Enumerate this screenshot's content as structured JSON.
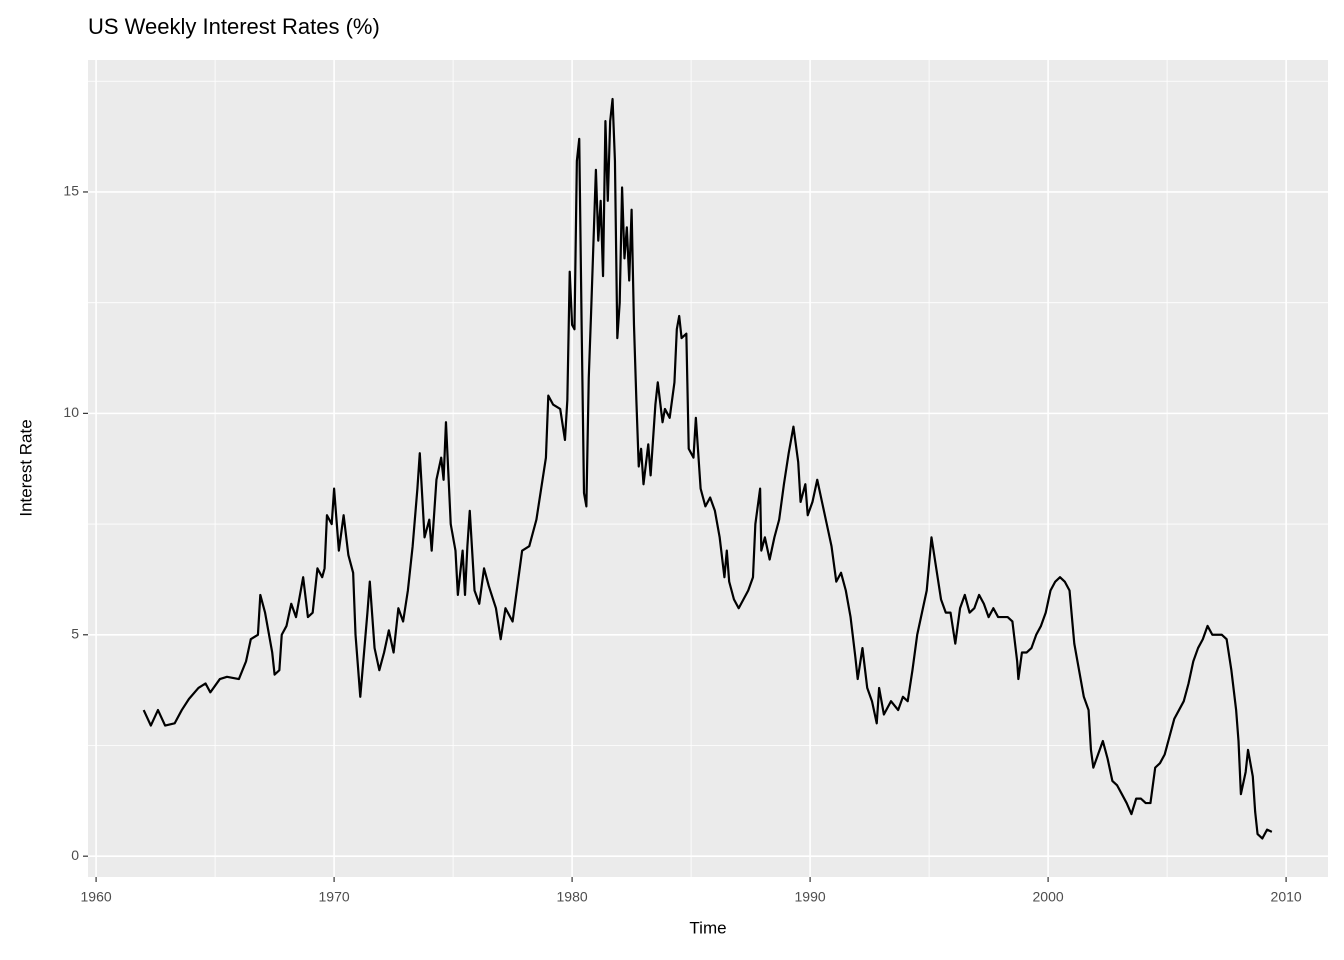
{
  "chart_data": {
    "type": "line",
    "title": "US Weekly Interest Rates (%)",
    "x_label": "Time",
    "y_label": "Interest Rate",
    "color": "#000000",
    "grid": true,
    "xlim": [
      1959.66,
      2011.76
    ],
    "ylim": [
      -0.47,
      17.98
    ],
    "xticks": [
      1960,
      1970,
      1980,
      1990,
      2000,
      2010
    ],
    "yticks": [
      0,
      5,
      10,
      15
    ],
    "xminorticks": [
      1965,
      1975,
      1985,
      1995,
      2005
    ],
    "yminorticks": [
      2.5,
      7.5,
      12.5,
      17.5
    ],
    "x": [
      1962.0,
      1962.3,
      1962.6,
      1962.9,
      1963.3,
      1963.6,
      1963.9,
      1964.3,
      1964.6,
      1964.8,
      1965.2,
      1965.5,
      1966.0,
      1966.3,
      1966.5,
      1966.8,
      1966.9,
      1967.1,
      1967.4,
      1967.5,
      1967.7,
      1967.8,
      1968.0,
      1968.2,
      1968.4,
      1968.7,
      1968.9,
      1969.1,
      1969.3,
      1969.5,
      1969.6,
      1969.7,
      1969.9,
      1970.0,
      1970.2,
      1970.4,
      1970.6,
      1970.8,
      1970.9,
      1971.1,
      1971.4,
      1971.5,
      1971.7,
      1971.9,
      1972.1,
      1972.3,
      1972.5,
      1972.7,
      1972.9,
      1973.1,
      1973.3,
      1973.5,
      1973.6,
      1973.8,
      1974.0,
      1974.1,
      1974.3,
      1974.5,
      1974.6,
      1974.7,
      1974.9,
      1975.1,
      1975.2,
      1975.4,
      1975.5,
      1975.6,
      1975.7,
      1975.9,
      1976.1,
      1976.3,
      1976.5,
      1976.8,
      1977.0,
      1977.2,
      1977.5,
      1977.7,
      1977.9,
      1978.2,
      1978.5,
      1978.7,
      1978.9,
      1979.0,
      1979.2,
      1979.5,
      1979.7,
      1979.8,
      1979.9,
      1980.0,
      1980.1,
      1980.2,
      1980.3,
      1980.4,
      1980.5,
      1980.6,
      1980.7,
      1980.8,
      1980.9,
      1981.0,
      1981.1,
      1981.2,
      1981.3,
      1981.4,
      1981.5,
      1981.6,
      1981.7,
      1981.8,
      1981.9,
      1982.0,
      1982.1,
      1982.2,
      1982.3,
      1982.4,
      1982.5,
      1982.6,
      1982.7,
      1982.8,
      1982.9,
      1983.0,
      1983.2,
      1983.3,
      1983.5,
      1983.6,
      1983.8,
      1983.9,
      1984.1,
      1984.3,
      1984.4,
      1984.5,
      1984.6,
      1984.8,
      1984.9,
      1985.1,
      1985.2,
      1985.4,
      1985.6,
      1985.8,
      1986.0,
      1986.2,
      1986.4,
      1986.5,
      1986.6,
      1986.8,
      1987.0,
      1987.2,
      1987.4,
      1987.6,
      1987.7,
      1987.9,
      1987.95,
      1988.1,
      1988.3,
      1988.5,
      1988.7,
      1988.9,
      1989.1,
      1989.3,
      1989.5,
      1989.6,
      1989.8,
      1989.9,
      1990.1,
      1990.3,
      1990.5,
      1990.7,
      1990.9,
      1991.1,
      1991.3,
      1991.5,
      1991.7,
      1991.9,
      1992.0,
      1992.2,
      1992.4,
      1992.6,
      1992.8,
      1992.9,
      1993.1,
      1993.4,
      1993.7,
      1993.9,
      1994.1,
      1994.3,
      1994.5,
      1994.7,
      1994.9,
      1995.1,
      1995.3,
      1995.5,
      1995.7,
      1995.9,
      1996.1,
      1996.3,
      1996.5,
      1996.7,
      1996.9,
      1997.1,
      1997.3,
      1997.5,
      1997.7,
      1997.9,
      1998.1,
      1998.3,
      1998.5,
      1998.7,
      1998.75,
      1998.9,
      1999.1,
      1999.3,
      1999.5,
      1999.7,
      1999.9,
      2000.1,
      2000.3,
      2000.5,
      2000.7,
      2000.9,
      2001.1,
      2001.3,
      2001.5,
      2001.7,
      2001.8,
      2001.9,
      2002.1,
      2002.3,
      2002.5,
      2002.7,
      2002.9,
      2003.1,
      2003.3,
      2003.5,
      2003.7,
      2003.9,
      2004.1,
      2004.3,
      2004.5,
      2004.7,
      2004.9,
      2005.1,
      2005.3,
      2005.5,
      2005.7,
      2005.9,
      2006.1,
      2006.3,
      2006.5,
      2006.7,
      2006.9,
      2007.1,
      2007.3,
      2007.5,
      2007.7,
      2007.9,
      2008.0,
      2008.1,
      2008.3,
      2008.4,
      2008.6,
      2008.7,
      2008.8,
      2009.0,
      2009.2,
      2009.4
    ],
    "values": [
      3.3,
      2.95,
      3.3,
      2.95,
      3.0,
      3.3,
      3.55,
      3.8,
      3.9,
      3.7,
      4.0,
      4.05,
      4.0,
      4.4,
      4.9,
      5.0,
      5.9,
      5.5,
      4.6,
      4.1,
      4.2,
      5.0,
      5.2,
      5.7,
      5.4,
      6.3,
      5.4,
      5.5,
      6.5,
      6.3,
      6.5,
      7.7,
      7.5,
      8.3,
      6.9,
      7.7,
      6.8,
      6.4,
      5.0,
      3.6,
      5.5,
      6.2,
      4.7,
      4.2,
      4.6,
      5.1,
      4.6,
      5.6,
      5.3,
      6.0,
      7.0,
      8.3,
      9.1,
      7.2,
      7.6,
      6.9,
      8.5,
      9.0,
      8.5,
      9.8,
      7.5,
      6.9,
      5.9,
      6.9,
      5.9,
      7.0,
      7.8,
      6.0,
      5.7,
      6.5,
      6.1,
      5.6,
      4.9,
      5.6,
      5.3,
      6.1,
      6.9,
      7.0,
      7.6,
      8.3,
      9.0,
      10.4,
      10.2,
      10.1,
      9.4,
      10.3,
      13.2,
      12.0,
      11.9,
      15.7,
      16.2,
      12.0,
      8.2,
      7.9,
      10.8,
      12.3,
      13.9,
      15.5,
      13.9,
      14.8,
      13.1,
      16.6,
      14.8,
      16.6,
      17.1,
      15.7,
      11.7,
      12.5,
      15.1,
      13.5,
      14.2,
      13.0,
      14.6,
      12.0,
      10.3,
      8.8,
      9.2,
      8.4,
      9.3,
      8.6,
      10.2,
      10.7,
      9.8,
      10.1,
      9.9,
      10.7,
      11.9,
      12.2,
      11.7,
      11.8,
      9.2,
      9.0,
      9.9,
      8.3,
      7.9,
      8.1,
      7.8,
      7.2,
      6.3,
      6.9,
      6.2,
      5.8,
      5.6,
      5.8,
      6.0,
      6.3,
      7.5,
      8.3,
      6.9,
      7.2,
      6.7,
      7.2,
      7.6,
      8.4,
      9.1,
      9.7,
      8.9,
      8.0,
      8.4,
      7.7,
      8.0,
      8.5,
      8.0,
      7.5,
      7.0,
      6.2,
      6.4,
      6.0,
      5.4,
      4.5,
      4.0,
      4.7,
      3.8,
      3.5,
      3.0,
      3.8,
      3.2,
      3.5,
      3.3,
      3.6,
      3.5,
      4.2,
      5.0,
      5.5,
      6.0,
      7.2,
      6.5,
      5.8,
      5.5,
      5.5,
      4.8,
      5.6,
      5.9,
      5.5,
      5.6,
      5.9,
      5.7,
      5.4,
      5.6,
      5.4,
      5.4,
      5.4,
      5.3,
      4.4,
      4.0,
      4.6,
      4.6,
      4.7,
      5.0,
      5.2,
      5.5,
      6.0,
      6.2,
      6.3,
      6.2,
      6.0,
      4.8,
      4.2,
      3.6,
      3.3,
      2.4,
      2.0,
      2.3,
      2.6,
      2.2,
      1.7,
      1.6,
      1.4,
      1.2,
      0.95,
      1.3,
      1.3,
      1.2,
      1.2,
      2.0,
      2.1,
      2.3,
      2.7,
      3.1,
      3.3,
      3.5,
      3.9,
      4.4,
      4.7,
      4.9,
      5.2,
      5.0,
      5.0,
      5.0,
      4.9,
      4.2,
      3.3,
      2.6,
      1.4,
      1.9,
      2.4,
      1.8,
      1.0,
      0.5,
      0.4,
      0.6,
      0.55
    ]
  }
}
